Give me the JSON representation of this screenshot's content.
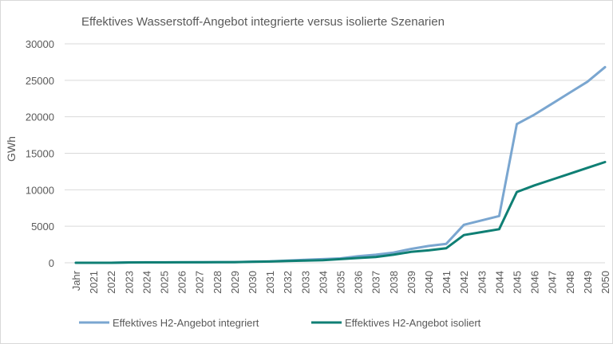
{
  "chart_data": {
    "type": "line",
    "title": "Effektives Wasserstoff-Angebot integrierte versus isolierte Szenarien",
    "xlabel": "",
    "ylabel": "GWh",
    "categories": [
      "Jahr",
      "2021",
      "2022",
      "2023",
      "2024",
      "2025",
      "2026",
      "2027",
      "2028",
      "2029",
      "2030",
      "2031",
      "2032",
      "2033",
      "2034",
      "2035",
      "2036",
      "2037",
      "2038",
      "2039",
      "2040",
      "2041",
      "2042",
      "2043",
      "2044",
      "2045",
      "2046",
      "2047",
      "2048",
      "2049",
      "2050"
    ],
    "ylim": [
      0,
      30000
    ],
    "yticks": [
      "0",
      "5000",
      "10000",
      "15000",
      "20000",
      "25000",
      "30000"
    ],
    "grid": true,
    "legend_position": "bottom",
    "series": [
      {
        "name": "Effektives H2-Angebot integriert",
        "color": "#7aa6d0",
        "values": [
          0,
          0,
          0,
          50,
          60,
          60,
          70,
          80,
          90,
          100,
          150,
          200,
          300,
          400,
          500,
          600,
          900,
          1100,
          1400,
          1900,
          2300,
          2600,
          5200,
          5800,
          6400,
          19000,
          20300,
          21800,
          23300,
          24800,
          26800
        ]
      },
      {
        "name": "Effektives H2-Angebot isoliert",
        "color": "#0f7f74",
        "values": [
          0,
          0,
          0,
          40,
          50,
          50,
          60,
          70,
          80,
          90,
          130,
          180,
          250,
          300,
          350,
          500,
          650,
          800,
          1100,
          1500,
          1700,
          2000,
          3800,
          4200,
          4600,
          9700,
          10600,
          11400,
          12200,
          13000,
          13800
        ]
      }
    ]
  }
}
